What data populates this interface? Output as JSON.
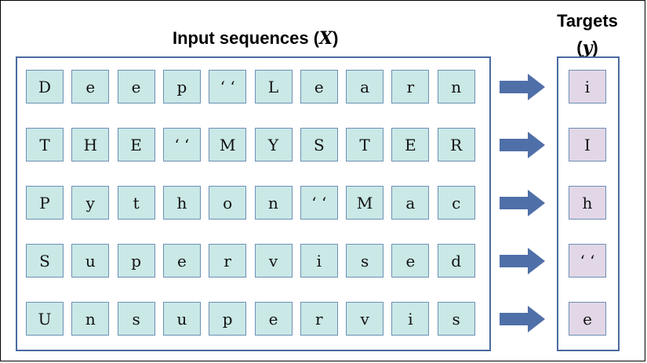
{
  "titles": {
    "input": "Input sequences (",
    "input_var": "X",
    "input_close": ")",
    "targets": "Targets",
    "targets_var": "y"
  },
  "rows": [
    {
      "inputs": [
        "D",
        "e",
        "e",
        "p",
        "‘ ‘",
        "L",
        "e",
        "a",
        "r",
        "n"
      ],
      "target": "i"
    },
    {
      "inputs": [
        "T",
        "H",
        "E",
        "‘ ‘",
        "M",
        "Y",
        "S",
        "T",
        "E",
        "R"
      ],
      "target": "I"
    },
    {
      "inputs": [
        "P",
        "y",
        "t",
        "h",
        "o",
        "n",
        "‘ ‘",
        "M",
        "a",
        "c"
      ],
      "target": "h"
    },
    {
      "inputs": [
        "S",
        "u",
        "p",
        "e",
        "r",
        "v",
        "i",
        "s",
        "e",
        "d"
      ],
      "target": "‘ ‘"
    },
    {
      "inputs": [
        "U",
        "n",
        "s",
        "u",
        "p",
        "e",
        "r",
        "v",
        "i",
        "s"
      ],
      "target": "e"
    }
  ],
  "colors": {
    "input_fill": "#c9e8e6",
    "target_fill": "#e2d7e6",
    "border": "#4a6aa0",
    "arrow": "#4f6fa8"
  }
}
